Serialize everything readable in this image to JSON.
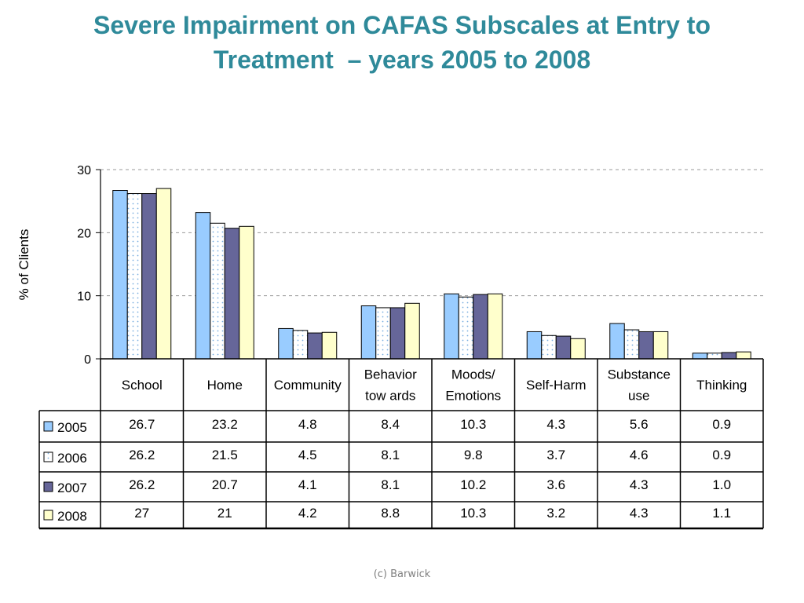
{
  "slide": {
    "title_line1": "Severe Impairment on CAFAS Subscales at Entry to",
    "title_line2": "Treatment  – years 2005 to 2008",
    "footer": "(c) Barwick"
  },
  "chart_data": {
    "type": "bar",
    "title": "",
    "ylabel": "% of Clients",
    "xlabel": "",
    "ylim": [
      0,
      30
    ],
    "yticks": [
      0,
      10,
      20,
      30
    ],
    "grid": true,
    "legend": "data-table-rows",
    "categories": [
      [
        "School"
      ],
      [
        "Home"
      ],
      [
        "Community"
      ],
      [
        "Behavior",
        "tow ards"
      ],
      [
        "Moods/",
        "Emotions"
      ],
      [
        "Self-Harm"
      ],
      [
        "Substance",
        "use"
      ],
      [
        "Thinking"
      ]
    ],
    "series": [
      {
        "name": "2005",
        "color": "#99ccff",
        "pattern": "solid",
        "values": [
          26.7,
          23.2,
          4.8,
          8.4,
          10.3,
          4.3,
          5.6,
          0.9
        ],
        "labels": [
          "26.7",
          "23.2",
          "4.8",
          "8.4",
          "10.3",
          "4.3",
          "5.6",
          "0.9"
        ]
      },
      {
        "name": "2006",
        "color": "#ffffff",
        "pattern": "dotted-blue",
        "values": [
          26.2,
          21.5,
          4.5,
          8.1,
          9.8,
          3.7,
          4.6,
          0.9
        ],
        "labels": [
          "26.2",
          "21.5",
          "4.5",
          "8.1",
          "9.8",
          "3.7",
          "4.6",
          "0.9"
        ]
      },
      {
        "name": "2007",
        "color": "#666699",
        "pattern": "solid",
        "values": [
          26.2,
          20.7,
          4.1,
          8.1,
          10.2,
          3.6,
          4.3,
          1.0
        ],
        "labels": [
          "26.2",
          "20.7",
          "4.1",
          "8.1",
          "10.2",
          "3.6",
          "4.3",
          "1.0"
        ]
      },
      {
        "name": "2008",
        "color": "#ffffcc",
        "pattern": "solid",
        "values": [
          27,
          21,
          4.2,
          8.8,
          10.3,
          3.2,
          4.3,
          1.1
        ],
        "labels": [
          "27",
          "21",
          "4.2",
          "8.8",
          "10.3",
          "3.2",
          "4.3",
          "1.1"
        ]
      }
    ]
  }
}
